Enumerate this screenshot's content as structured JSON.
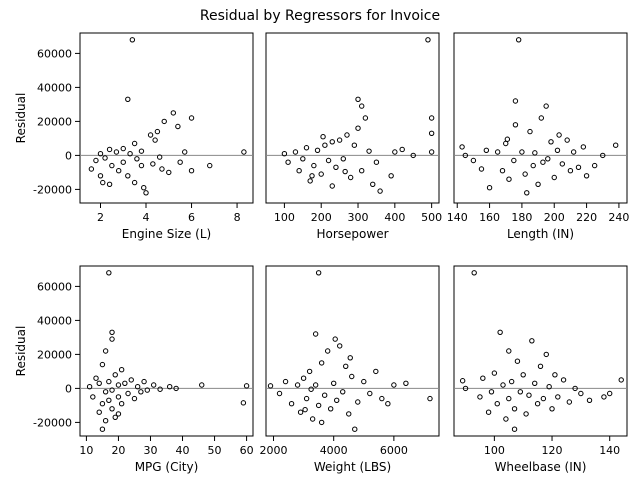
{
  "figure": {
    "title": "Residual by Regressors for Invoice"
  },
  "chart_data": {
    "type": "scatter",
    "title": "Residual by Regressors for Invoice",
    "ylabel": "Residual",
    "ylim": [
      -28000,
      72000
    ],
    "yticks": [
      -20000,
      0,
      20000,
      40000,
      60000
    ],
    "reference_line_y": 0,
    "grid": false,
    "marker": "open-circle",
    "colors": {
      "marker": "#000000",
      "reference_line": "#888888",
      "frame": "#000000"
    },
    "panels": [
      {
        "xlabel": "Engine Size (L)",
        "xlim": [
          1.1,
          8.7
        ],
        "xticks": [
          2,
          4,
          6,
          8
        ],
        "points": [
          [
            1.6,
            -8000
          ],
          [
            1.8,
            -3000
          ],
          [
            2.0,
            1000
          ],
          [
            2.0,
            -12000
          ],
          [
            2.2,
            -1500
          ],
          [
            2.4,
            3500
          ],
          [
            2.4,
            -17000
          ],
          [
            2.5,
            -6000
          ],
          [
            2.7,
            2000
          ],
          [
            2.8,
            -9000
          ],
          [
            3.0,
            4000
          ],
          [
            3.0,
            -4000
          ],
          [
            3.2,
            -12000
          ],
          [
            3.3,
            1000
          ],
          [
            3.5,
            -16000
          ],
          [
            3.5,
            7000
          ],
          [
            3.6,
            -2000
          ],
          [
            3.8,
            -6000
          ],
          [
            3.8,
            2500
          ],
          [
            4.0,
            -22000
          ],
          [
            4.2,
            12000
          ],
          [
            4.3,
            -5000
          ],
          [
            4.5,
            14000
          ],
          [
            4.6,
            -1000
          ],
          [
            4.7,
            -8000
          ],
          [
            4.8,
            20000
          ],
          [
            5.0,
            -10000
          ],
          [
            5.2,
            25000
          ],
          [
            5.4,
            17000
          ],
          [
            5.5,
            -4000
          ],
          [
            5.7,
            2000
          ],
          [
            6.0,
            22000
          ],
          [
            6.0,
            -9000
          ],
          [
            3.4,
            68000
          ],
          [
            3.2,
            33000
          ],
          [
            8.3,
            2000
          ],
          [
            6.8,
            -6000
          ],
          [
            2.1,
            -16000
          ],
          [
            4.4,
            9000
          ],
          [
            3.9,
            -19000
          ]
        ]
      },
      {
        "xlabel": "Horsepower",
        "xlim": [
          50,
          520
        ],
        "xticks": [
          100,
          200,
          300,
          400,
          500
        ],
        "points": [
          [
            100,
            1000
          ],
          [
            110,
            -4000
          ],
          [
            130,
            2000
          ],
          [
            140,
            -9000
          ],
          [
            150,
            -2000
          ],
          [
            160,
            4500
          ],
          [
            170,
            -15000
          ],
          [
            180,
            -6000
          ],
          [
            190,
            3000
          ],
          [
            200,
            -11000
          ],
          [
            210,
            6000
          ],
          [
            220,
            -3000
          ],
          [
            230,
            -18000
          ],
          [
            240,
            -7000
          ],
          [
            250,
            9000
          ],
          [
            260,
            -2000
          ],
          [
            270,
            12000
          ],
          [
            280,
            -13000
          ],
          [
            290,
            6000
          ],
          [
            300,
            16000
          ],
          [
            310,
            -9000
          ],
          [
            320,
            22000
          ],
          [
            330,
            2500
          ],
          [
            340,
            -17000
          ],
          [
            350,
            -4000
          ],
          [
            300,
            33000
          ],
          [
            310,
            29000
          ],
          [
            400,
            2000
          ],
          [
            390,
            -12000
          ],
          [
            450,
            0
          ],
          [
            490,
            68000
          ],
          [
            500,
            22000
          ],
          [
            500,
            13000
          ],
          [
            500,
            2000
          ],
          [
            420,
            3500
          ],
          [
            360,
            -21000
          ],
          [
            230,
            8000
          ],
          [
            175,
            -12000
          ],
          [
            265,
            -9500
          ],
          [
            205,
            11000
          ]
        ]
      },
      {
        "xlabel": "Length (IN)",
        "xlim": [
          138,
          245
        ],
        "xticks": [
          140,
          160,
          180,
          200,
          220,
          240
        ],
        "points": [
          [
            143,
            5000
          ],
          [
            145,
            0
          ],
          [
            150,
            -3000
          ],
          [
            155,
            -8000
          ],
          [
            158,
            3000
          ],
          [
            160,
            -19000
          ],
          [
            165,
            2000
          ],
          [
            168,
            -9000
          ],
          [
            170,
            7000
          ],
          [
            172,
            -14000
          ],
          [
            175,
            -3000
          ],
          [
            176,
            18000
          ],
          [
            178,
            68000
          ],
          [
            180,
            2000
          ],
          [
            182,
            -11000
          ],
          [
            185,
            14000
          ],
          [
            187,
            -6000
          ],
          [
            188,
            1500
          ],
          [
            190,
            -17000
          ],
          [
            192,
            22000
          ],
          [
            195,
            29000
          ],
          [
            196,
            -2000
          ],
          [
            198,
            8000
          ],
          [
            200,
            -13000
          ],
          [
            202,
            3000
          ],
          [
            205,
            -5000
          ],
          [
            208,
            9000
          ],
          [
            210,
            -9000
          ],
          [
            212,
            2000
          ],
          [
            215,
            -7000
          ],
          [
            218,
            5000
          ],
          [
            220,
            -12000
          ],
          [
            225,
            -6000
          ],
          [
            230,
            0
          ],
          [
            238,
            6000
          ],
          [
            176,
            32000
          ],
          [
            183,
            -22000
          ],
          [
            203,
            12000
          ],
          [
            171,
            9500
          ],
          [
            193,
            -4000
          ]
        ]
      },
      {
        "xlabel": "MPG (City)",
        "xlim": [
          8,
          62
        ],
        "xticks": [
          10,
          20,
          30,
          40,
          50,
          60
        ],
        "points": [
          [
            11,
            1000
          ],
          [
            12,
            -5000
          ],
          [
            13,
            6000
          ],
          [
            14,
            -14000
          ],
          [
            14,
            3000
          ],
          [
            15,
            -9000
          ],
          [
            15,
            14000
          ],
          [
            16,
            -19000
          ],
          [
            16,
            -2000
          ],
          [
            16,
            22000
          ],
          [
            17,
            68000
          ],
          [
            17,
            4000
          ],
          [
            17,
            -7000
          ],
          [
            18,
            29000
          ],
          [
            18,
            -12000
          ],
          [
            18,
            -1000
          ],
          [
            19,
            8000
          ],
          [
            19,
            -17000
          ],
          [
            20,
            2000
          ],
          [
            20,
            -5000
          ],
          [
            21,
            11000
          ],
          [
            21,
            -9000
          ],
          [
            22,
            3000
          ],
          [
            23,
            -3000
          ],
          [
            24,
            5000
          ],
          [
            25,
            -6000
          ],
          [
            26,
            1000
          ],
          [
            27,
            -2000
          ],
          [
            28,
            4000
          ],
          [
            29,
            -1000
          ],
          [
            31,
            2000
          ],
          [
            33,
            -500
          ],
          [
            36,
            1000
          ],
          [
            38,
            0
          ],
          [
            46,
            2000
          ],
          [
            59,
            -8500
          ],
          [
            60,
            1500
          ],
          [
            15,
            -24000
          ],
          [
            18,
            33000
          ],
          [
            20,
            -15000
          ]
        ]
      },
      {
        "xlabel": "Weight (LBS)",
        "xlim": [
          1750,
          7500
        ],
        "xticks": [
          2000,
          4000,
          6000
        ],
        "points": [
          [
            1900,
            1500
          ],
          [
            2200,
            -3000
          ],
          [
            2400,
            4000
          ],
          [
            2600,
            -9000
          ],
          [
            2800,
            2000
          ],
          [
            2900,
            -14000
          ],
          [
            3000,
            6000
          ],
          [
            3100,
            -6000
          ],
          [
            3200,
            10000
          ],
          [
            3300,
            -18000
          ],
          [
            3400,
            2000
          ],
          [
            3400,
            32000
          ],
          [
            3500,
            -10000
          ],
          [
            3500,
            68000
          ],
          [
            3600,
            15000
          ],
          [
            3700,
            -4000
          ],
          [
            3800,
            22000
          ],
          [
            3900,
            -12000
          ],
          [
            4000,
            3000
          ],
          [
            4100,
            -7000
          ],
          [
            4200,
            25000
          ],
          [
            4300,
            -2000
          ],
          [
            4400,
            13000
          ],
          [
            4500,
            -15000
          ],
          [
            4600,
            7000
          ],
          [
            4800,
            -8000
          ],
          [
            5000,
            4000
          ],
          [
            5200,
            -3000
          ],
          [
            5400,
            10000
          ],
          [
            5600,
            -6000
          ],
          [
            5800,
            -9000
          ],
          [
            6000,
            2000
          ],
          [
            6400,
            3000
          ],
          [
            7200,
            -6000
          ],
          [
            4700,
            -24000
          ],
          [
            3600,
            -20000
          ],
          [
            4050,
            29000
          ],
          [
            3250,
            -500
          ],
          [
            4550,
            18000
          ],
          [
            3050,
            -12500
          ]
        ]
      },
      {
        "xlabel": "Wheelbase (IN)",
        "xlim": [
          86,
          146
        ],
        "xticks": [
          100,
          120,
          140
        ],
        "points": [
          [
            89,
            4500
          ],
          [
            90,
            0
          ],
          [
            93,
            68000
          ],
          [
            95,
            -5000
          ],
          [
            96,
            6000
          ],
          [
            98,
            -14000
          ],
          [
            99,
            -2000
          ],
          [
            100,
            9000
          ],
          [
            101,
            -9000
          ],
          [
            102,
            33000
          ],
          [
            103,
            2000
          ],
          [
            104,
            -18000
          ],
          [
            105,
            22000
          ],
          [
            105,
            -6000
          ],
          [
            106,
            4000
          ],
          [
            107,
            -12000
          ],
          [
            108,
            16000
          ],
          [
            109,
            -2000
          ],
          [
            110,
            8000
          ],
          [
            111,
            -15000
          ],
          [
            112,
            -4000
          ],
          [
            113,
            28000
          ],
          [
            114,
            3000
          ],
          [
            115,
            -9000
          ],
          [
            116,
            13000
          ],
          [
            117,
            -6000
          ],
          [
            118,
            20000
          ],
          [
            119,
            1000
          ],
          [
            120,
            -12000
          ],
          [
            121,
            8000
          ],
          [
            122,
            -5000
          ],
          [
            124,
            5000
          ],
          [
            126,
            -8000
          ],
          [
            128,
            0
          ],
          [
            130,
            -3000
          ],
          [
            133,
            -7000
          ],
          [
            138,
            -5000
          ],
          [
            140,
            -3000
          ],
          [
            144,
            5000
          ],
          [
            107,
            -24000
          ]
        ]
      }
    ]
  }
}
